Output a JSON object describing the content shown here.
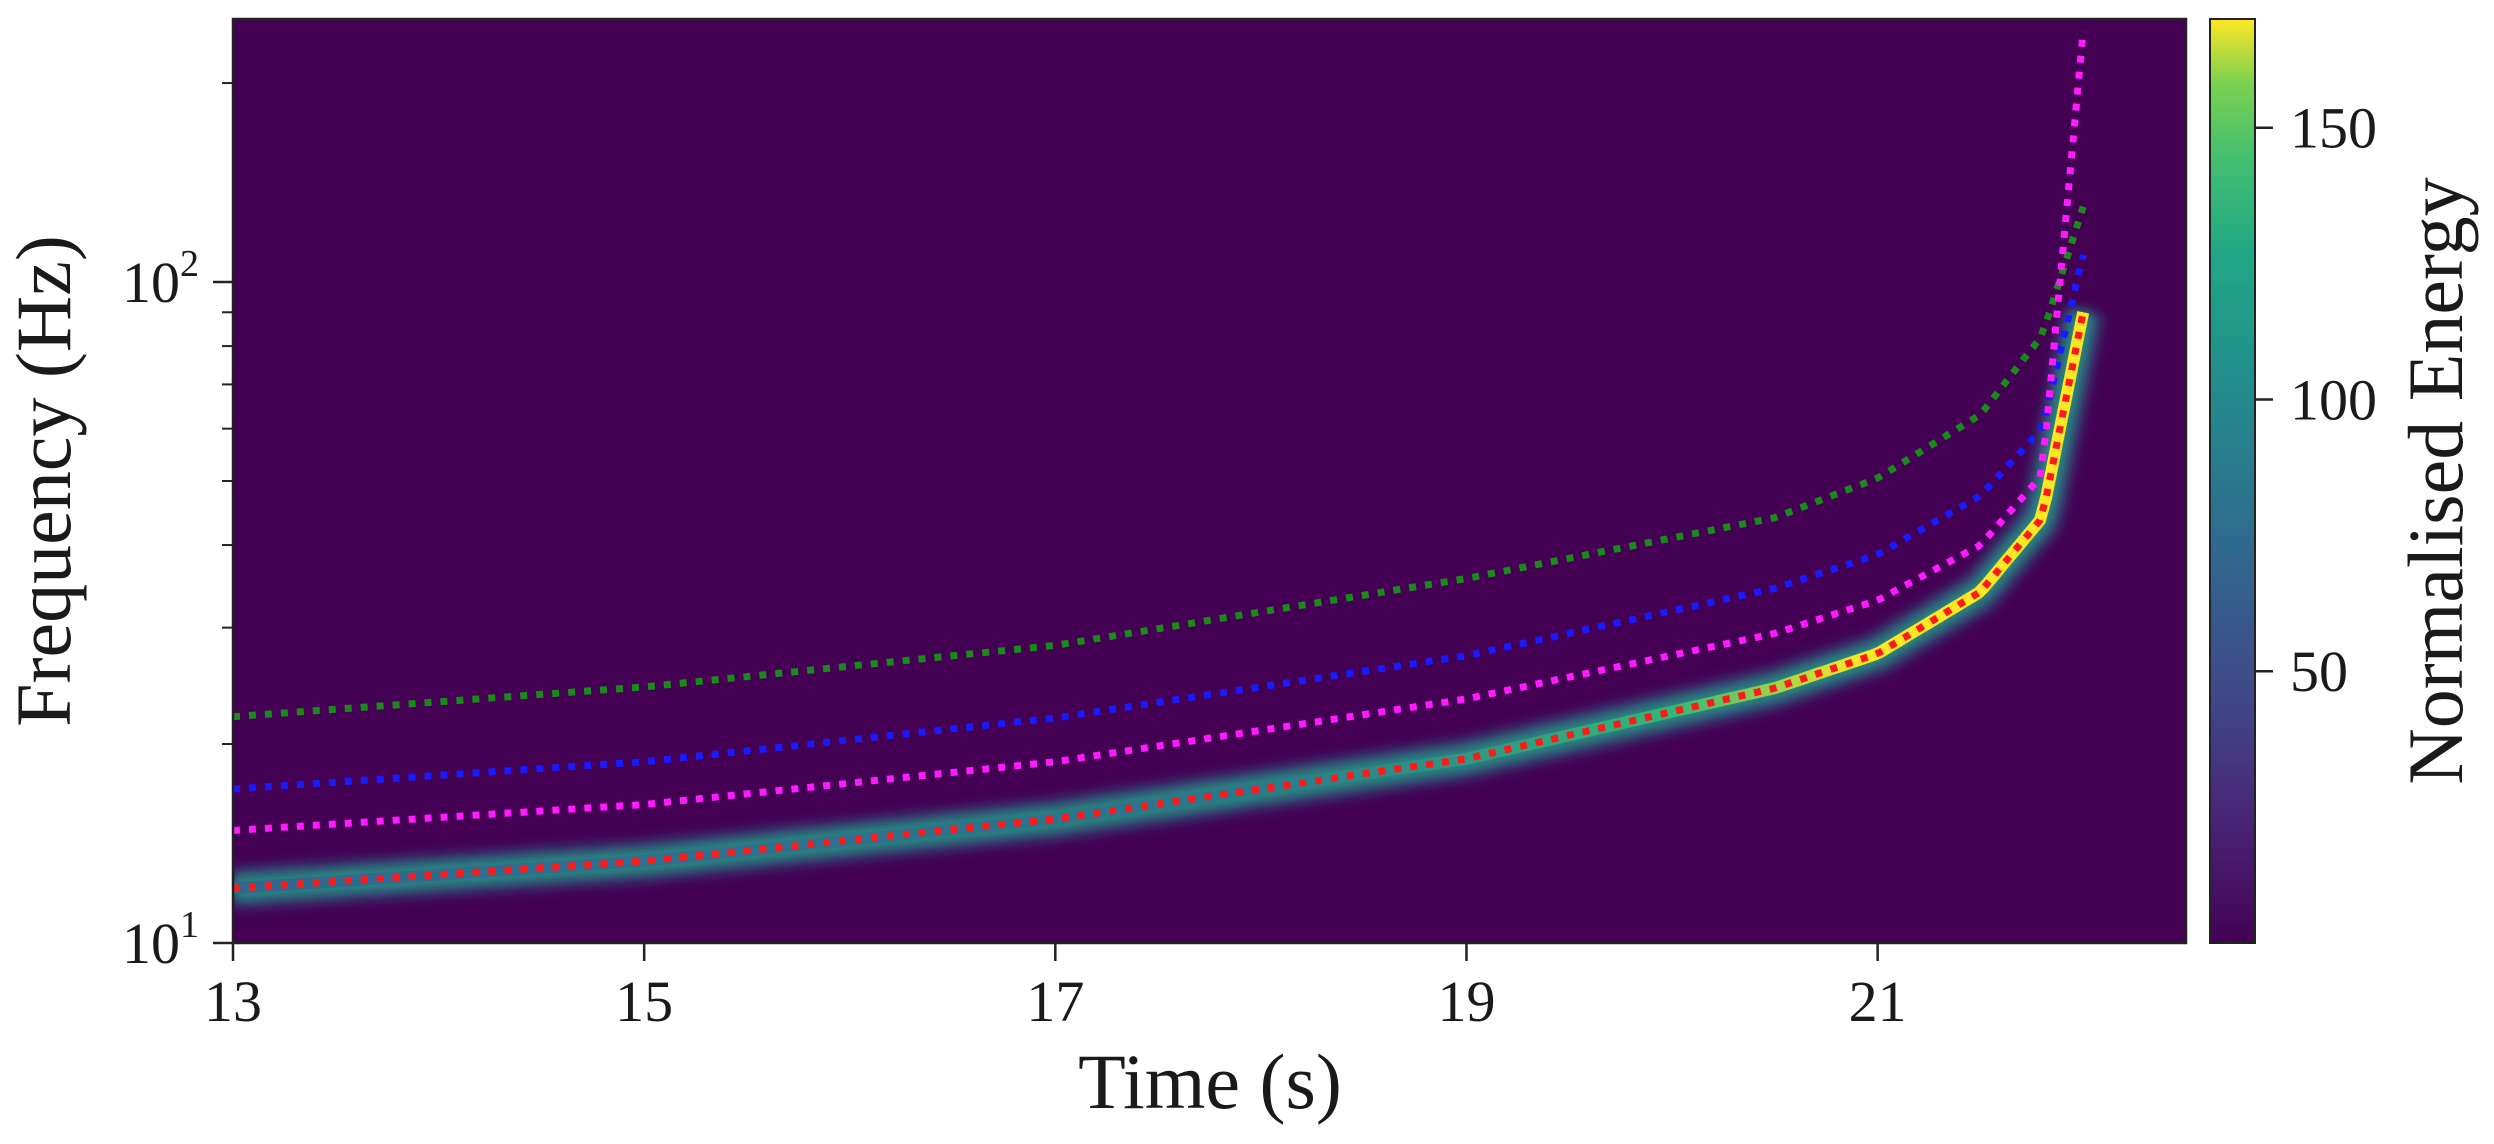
{
  "chart_data": {
    "type": "heatmap",
    "subtype": "time-frequency spectrogram with chirp track overlays",
    "xlabel": "Time (s)",
    "ylabel": "Frequency (Hz)",
    "xlim": [
      13,
      22.5
    ],
    "ylim": [
      10,
      250
    ],
    "yscale": "log",
    "xticks": [
      13,
      15,
      17,
      19,
      21
    ],
    "xtick_labels": [
      "13",
      "15",
      "17",
      "19",
      "21"
    ],
    "yticks": [
      10,
      100
    ],
    "ytick_labels": [
      {
        "base": "10",
        "exp": "1"
      },
      {
        "base": "10",
        "exp": "2"
      }
    ],
    "colorbar": {
      "label": "Normalised Energy",
      "colormap": "viridis",
      "range": [
        0,
        170
      ],
      "ticks": [
        50,
        100,
        150
      ],
      "tick_labels": [
        "50",
        "100",
        "150"
      ],
      "position": "right"
    },
    "coalescence_time": 22.0,
    "energy_ridge": {
      "description_of_peak": "bright ridge following the red track",
      "peak_energy": 170
    },
    "series": [
      {
        "color": "#1a8a1a",
        "style": "dotted",
        "points": [
          [
            13.0,
            22.0
          ],
          [
            15.0,
            24.4
          ],
          [
            17.0,
            28.2
          ],
          [
            19.0,
            35.6
          ],
          [
            20.5,
            44.0
          ],
          [
            21.0,
            50.5
          ],
          [
            21.5,
            63.0
          ],
          [
            21.8,
            83.0
          ],
          [
            22.0,
            130.0
          ]
        ]
      },
      {
        "color": "#1a1aff",
        "style": "dotted",
        "points": [
          [
            13.0,
            17.1
          ],
          [
            15.0,
            18.8
          ],
          [
            17.0,
            21.9
          ],
          [
            19.0,
            27.2
          ],
          [
            20.5,
            34.4
          ],
          [
            21.0,
            38.7
          ],
          [
            21.5,
            47.5
          ],
          [
            21.8,
            60.0
          ],
          [
            22.0,
            110.0
          ]
        ]
      },
      {
        "color": "#ff1aff",
        "style": "dotted",
        "points": [
          [
            13.0,
            14.8
          ],
          [
            15.0,
            16.2
          ],
          [
            17.0,
            18.8
          ],
          [
            19.0,
            23.4
          ],
          [
            20.5,
            29.4
          ],
          [
            21.0,
            33.0
          ],
          [
            21.5,
            40.0
          ],
          [
            21.8,
            51.0
          ],
          [
            22.0,
            240.0
          ]
        ]
      },
      {
        "color": "#ff1a1a",
        "style": "dotted",
        "points": [
          [
            13.0,
            12.1
          ],
          [
            15.0,
            13.3
          ],
          [
            17.0,
            15.4
          ],
          [
            19.0,
            19.0
          ],
          [
            20.5,
            24.3
          ],
          [
            21.0,
            27.4
          ],
          [
            21.5,
            34.0
          ],
          [
            21.8,
            44.0
          ],
          [
            22.0,
            90.0
          ]
        ]
      }
    ]
  }
}
